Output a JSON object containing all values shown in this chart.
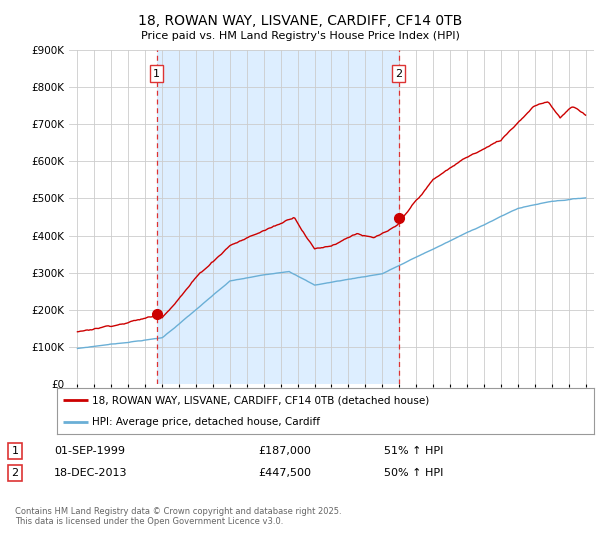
{
  "title": "18, ROWAN WAY, LISVANE, CARDIFF, CF14 0TB",
  "subtitle": "Price paid vs. HM Land Registry's House Price Index (HPI)",
  "background_color": "#ffffff",
  "plot_bg_color": "#ffffff",
  "grid_color": "#cccccc",
  "red_color": "#cc0000",
  "blue_color": "#6aafd6",
  "shade_color": "#ddeeff",
  "marker1_x": 1999.67,
  "marker1_y": 187000,
  "marker2_x": 2013.96,
  "marker2_y": 447500,
  "vline_color": "#dd3333",
  "legend_label_red": "18, ROWAN WAY, LISVANE, CARDIFF, CF14 0TB (detached house)",
  "legend_label_blue": "HPI: Average price, detached house, Cardiff",
  "footer": "Contains HM Land Registry data © Crown copyright and database right 2025.\nThis data is licensed under the Open Government Licence v3.0.",
  "ylim": [
    0,
    900000
  ],
  "yticks": [
    0,
    100000,
    200000,
    300000,
    400000,
    500000,
    600000,
    700000,
    800000,
    900000
  ],
  "xlim": [
    1994.5,
    2025.5
  ],
  "xticks": [
    1995,
    1996,
    1997,
    1998,
    1999,
    2000,
    2001,
    2002,
    2003,
    2004,
    2005,
    2006,
    2007,
    2008,
    2009,
    2010,
    2011,
    2012,
    2013,
    2014,
    2015,
    2016,
    2017,
    2018,
    2019,
    2020,
    2021,
    2022,
    2023,
    2024,
    2025
  ]
}
